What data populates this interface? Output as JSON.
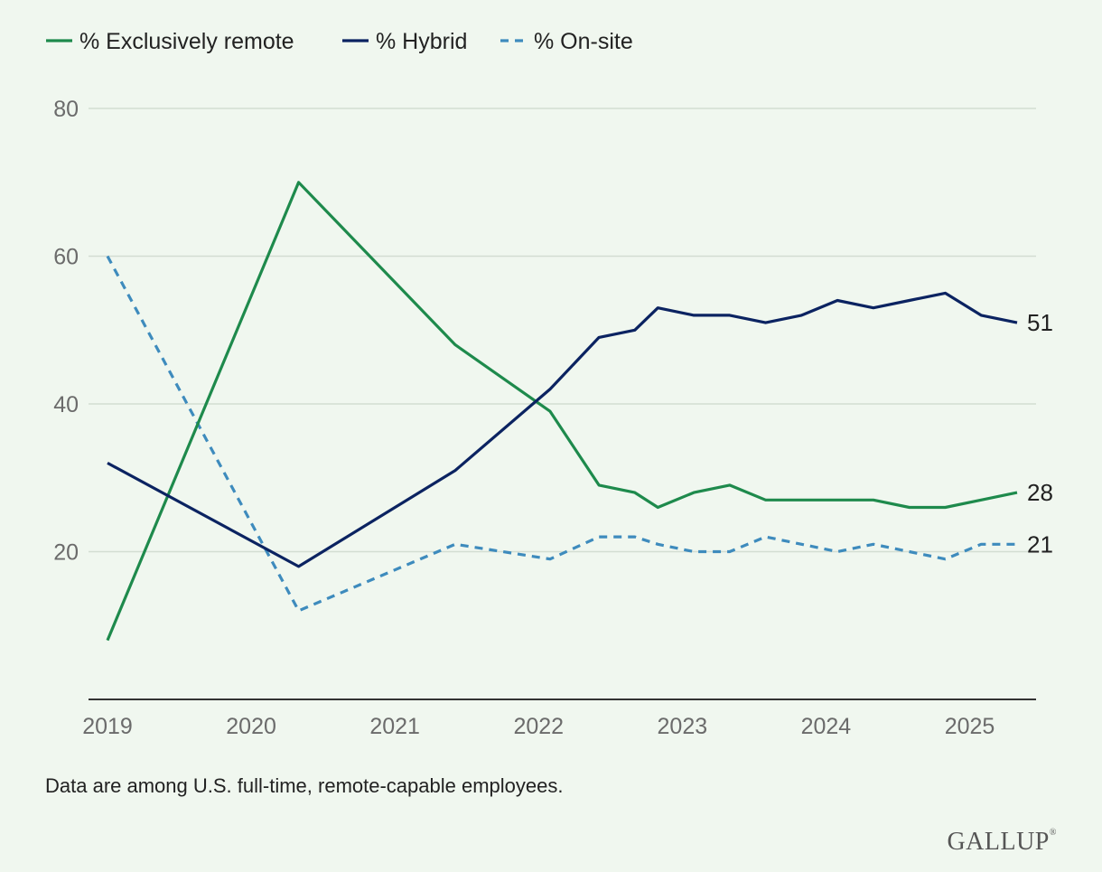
{
  "chart_data": {
    "type": "line",
    "title": "",
    "xlabel": "",
    "ylabel": "",
    "ylim": [
      0,
      80
    ],
    "yticks": [
      20,
      40,
      60,
      80
    ],
    "xlim": [
      2019,
      2025.35
    ],
    "xticks": [
      2019,
      2020,
      2021,
      2022,
      2023,
      2024,
      2025
    ],
    "legend_position": "top-left",
    "grid": true,
    "series": [
      {
        "name": "% Exclusively remote",
        "color": "#1e8a4c",
        "style": "solid",
        "end_label": "28",
        "points": [
          [
            2019.0,
            8
          ],
          [
            2020.33,
            70
          ],
          [
            2021.42,
            48
          ],
          [
            2022.08,
            39
          ],
          [
            2022.42,
            29
          ],
          [
            2022.67,
            28
          ],
          [
            2022.83,
            26
          ],
          [
            2023.08,
            28
          ],
          [
            2023.33,
            29
          ],
          [
            2023.58,
            27
          ],
          [
            2023.83,
            27
          ],
          [
            2024.08,
            27
          ],
          [
            2024.33,
            27
          ],
          [
            2024.58,
            26
          ],
          [
            2024.83,
            26
          ],
          [
            2025.08,
            27
          ],
          [
            2025.33,
            28
          ]
        ]
      },
      {
        "name": "% Hybrid",
        "color": "#0b2361",
        "style": "solid",
        "end_label": "51",
        "points": [
          [
            2019.0,
            32
          ],
          [
            2020.33,
            18
          ],
          [
            2021.42,
            31
          ],
          [
            2022.08,
            42
          ],
          [
            2022.42,
            49
          ],
          [
            2022.67,
            50
          ],
          [
            2022.83,
            53
          ],
          [
            2023.08,
            52
          ],
          [
            2023.33,
            52
          ],
          [
            2023.58,
            51
          ],
          [
            2023.83,
            52
          ],
          [
            2024.08,
            54
          ],
          [
            2024.33,
            53
          ],
          [
            2024.58,
            54
          ],
          [
            2024.83,
            55
          ],
          [
            2025.08,
            52
          ],
          [
            2025.33,
            51
          ]
        ]
      },
      {
        "name": "% On-site",
        "color": "#3e8bbd",
        "style": "dashed",
        "end_label": "21",
        "points": [
          [
            2019.0,
            60
          ],
          [
            2020.33,
            12
          ],
          [
            2021.42,
            21
          ],
          [
            2022.08,
            19
          ],
          [
            2022.42,
            22
          ],
          [
            2022.67,
            22
          ],
          [
            2022.83,
            21
          ],
          [
            2023.08,
            20
          ],
          [
            2023.33,
            20
          ],
          [
            2023.58,
            22
          ],
          [
            2023.83,
            21
          ],
          [
            2024.08,
            20
          ],
          [
            2024.33,
            21
          ],
          [
            2024.58,
            20
          ],
          [
            2024.83,
            19
          ],
          [
            2025.08,
            21
          ],
          [
            2025.33,
            21
          ]
        ]
      }
    ]
  },
  "footnote": "Data are among U.S. full-time, remote-capable employees.",
  "logo_text": "GALLUP"
}
